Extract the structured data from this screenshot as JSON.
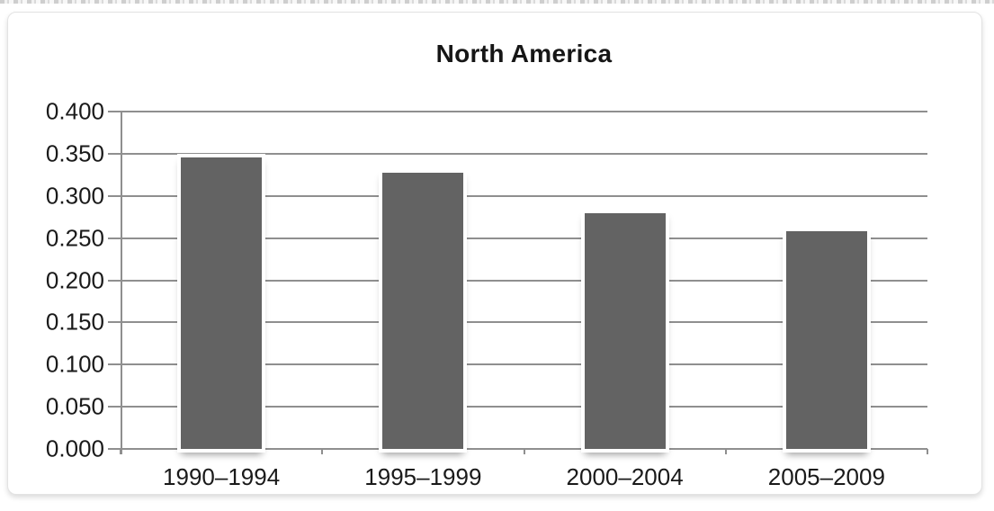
{
  "chart_data": {
    "type": "bar",
    "title": "North America",
    "categories": [
      "1990–1994",
      "1995–1999",
      "2000–2004",
      "2005–2009"
    ],
    "values": [
      0.346,
      0.327,
      0.28,
      0.258
    ],
    "xlabel": "",
    "ylabel": "",
    "ylim": [
      0.0,
      0.4
    ],
    "ytick_step": 0.05,
    "ytick_labels": [
      "0.400",
      "0.350",
      "0.300",
      "0.250",
      "0.200",
      "0.150",
      "0.100",
      "0.050",
      "0.000"
    ],
    "grid": "horizontal gridlines on",
    "legend_position": "none",
    "bar_color": "#636363",
    "gridline_color": "#8f8f8f",
    "title_color": "#161616",
    "label_color": "#1a1a1a",
    "background_color": "#ffffff"
  }
}
